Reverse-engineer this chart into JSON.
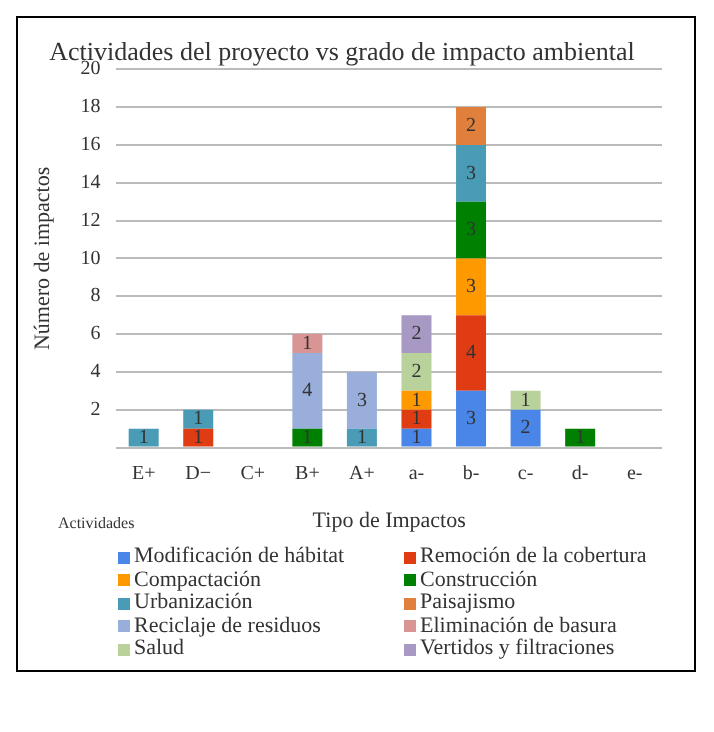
{
  "chart_data": {
    "type": "bar",
    "title": "Actividades del proyecto vs grado de impacto ambiental",
    "xlabel": "Tipo de Impactos",
    "ylabel": "Número de impactos",
    "categories": [
      "E+",
      "D−",
      "C+",
      "B+",
      "A+",
      "a-",
      "b-",
      "c-",
      "d-",
      "e-"
    ],
    "stacked": true,
    "data_labels": true,
    "grid": "y",
    "legend": "bottom",
    "ylim": [
      0,
      20
    ],
    "yticks": [
      {
        "value": 0,
        "label": null
      },
      2,
      4,
      6,
      8,
      10,
      12,
      14,
      16,
      18,
      20
    ],
    "annotations": [
      "Actividades"
    ],
    "series": [
      {
        "name": "Modificación de hábitat",
        "color": "#4a86e8",
        "values": [
          null,
          null,
          null,
          null,
          null,
          1,
          3,
          2,
          null,
          null
        ]
      },
      {
        "name": "Remoción de la cobertura",
        "color": "#e03c14",
        "values": [
          null,
          1,
          null,
          null,
          null,
          1,
          4,
          null,
          null,
          null
        ]
      },
      {
        "name": "Compactación",
        "color": "#ff9900",
        "values": [
          null,
          null,
          null,
          null,
          null,
          1,
          3,
          null,
          null,
          null
        ]
      },
      {
        "name": "Construcción",
        "color": "#008000",
        "values": [
          null,
          null,
          null,
          1,
          null,
          null,
          3,
          null,
          1,
          null
        ]
      },
      {
        "name": "Urbanización",
        "color": "#4a9bb5",
        "values": [
          1,
          1,
          null,
          null,
          1,
          null,
          3,
          null,
          null,
          null
        ]
      },
      {
        "name": "Paisajismo",
        "color": "#e0803c",
        "values": [
          null,
          null,
          null,
          null,
          null,
          null,
          2,
          null,
          null,
          null
        ]
      },
      {
        "name": "Reciclaje de residuos",
        "color": "#99aedb",
        "values": [
          null,
          null,
          null,
          4,
          3,
          null,
          null,
          null,
          null,
          null
        ]
      },
      {
        "name": "Eliminación de basura",
        "color": "#d99494",
        "values": [
          null,
          null,
          null,
          1,
          null,
          null,
          null,
          null,
          null,
          null
        ]
      },
      {
        "name": "Salud",
        "color": "#b9d19a",
        "values": [
          null,
          null,
          null,
          null,
          null,
          2,
          null,
          1,
          null,
          null
        ]
      },
      {
        "name": "Vertidos y filtraciones",
        "color": "#a899c4",
        "values": [
          null,
          null,
          null,
          null,
          null,
          2,
          null,
          null,
          null,
          null
        ]
      }
    ]
  }
}
